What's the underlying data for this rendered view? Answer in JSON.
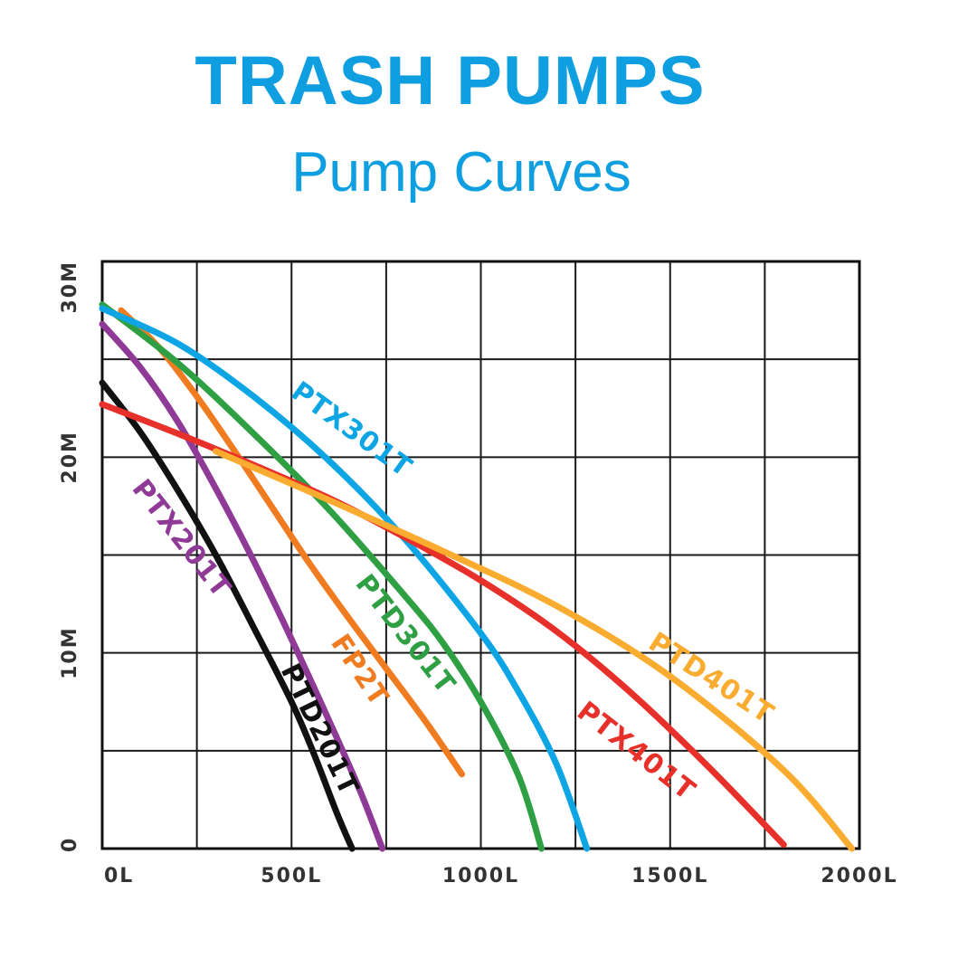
{
  "title": "TRASH PUMPS",
  "subtitle": "Pump Curves",
  "chart_data": {
    "type": "line",
    "title": "TRASH PUMPS",
    "subtitle": "Pump Curves",
    "xlabel": "",
    "ylabel": "",
    "xlim": [
      0,
      2000
    ],
    "ylim": [
      0,
      30
    ],
    "grid": true,
    "x_ticks": [
      0,
      500,
      1000,
      1500,
      2000
    ],
    "x_tick_labels": [
      "0L",
      "500L",
      "1000L",
      "1500L",
      "2000L"
    ],
    "y_ticks": [
      0,
      10,
      20,
      30
    ],
    "y_tick_labels": [
      "0",
      "10M",
      "20M",
      "30M"
    ],
    "series": [
      {
        "name": "PTD201T",
        "color": "#111111",
        "x": [
          0,
          100,
          200,
          300,
          400,
          500,
          560,
          620,
          660
        ],
        "y": [
          23.8,
          21.3,
          18.3,
          15.0,
          11.3,
          7.5,
          4.8,
          1.8,
          0
        ]
      },
      {
        "name": "PTX201T",
        "color": "#8e3a96",
        "x": [
          0,
          100,
          200,
          300,
          400,
          500,
          600,
          680,
          740
        ],
        "y": [
          26.8,
          24.6,
          21.8,
          18.4,
          14.7,
          10.7,
          6.5,
          3.0,
          0
        ]
      },
      {
        "name": "FP2T",
        "color": "#f07c22",
        "x": [
          50,
          150,
          250,
          350,
          450,
          550,
          650,
          750,
          850,
          950
        ],
        "y": [
          27.5,
          25.6,
          23.1,
          20.3,
          17.4,
          14.5,
          11.8,
          9.2,
          6.6,
          3.8
        ]
      },
      {
        "name": "PTD301T",
        "color": "#2ea043",
        "x": [
          0,
          200,
          400,
          600,
          800,
          900,
          1000,
          1100,
          1160
        ],
        "y": [
          27.8,
          24.8,
          21.2,
          17.3,
          12.9,
          10.5,
          7.5,
          3.7,
          0
        ]
      },
      {
        "name": "PTX301T",
        "color": "#0ea5e4",
        "x": [
          0,
          200,
          400,
          600,
          800,
          1000,
          1100,
          1200,
          1280
        ],
        "y": [
          27.6,
          25.8,
          23.1,
          19.8,
          15.8,
          11.0,
          8.0,
          4.3,
          0
        ]
      },
      {
        "name": "PTX401T",
        "color": "#e8302a",
        "x": [
          0,
          200,
          400,
          600,
          800,
          1000,
          1200,
          1400,
          1600,
          1800
        ],
        "y": [
          22.7,
          21.2,
          19.6,
          17.9,
          15.9,
          13.7,
          11.1,
          7.9,
          4.2,
          0.2
        ]
      },
      {
        "name": "PTD401T",
        "color": "#f9ac2f",
        "x": [
          300,
          600,
          900,
          1200,
          1500,
          1800,
          1980
        ],
        "y": [
          20.3,
          17.8,
          15.2,
          12.4,
          8.8,
          4.0,
          0
        ]
      }
    ]
  }
}
